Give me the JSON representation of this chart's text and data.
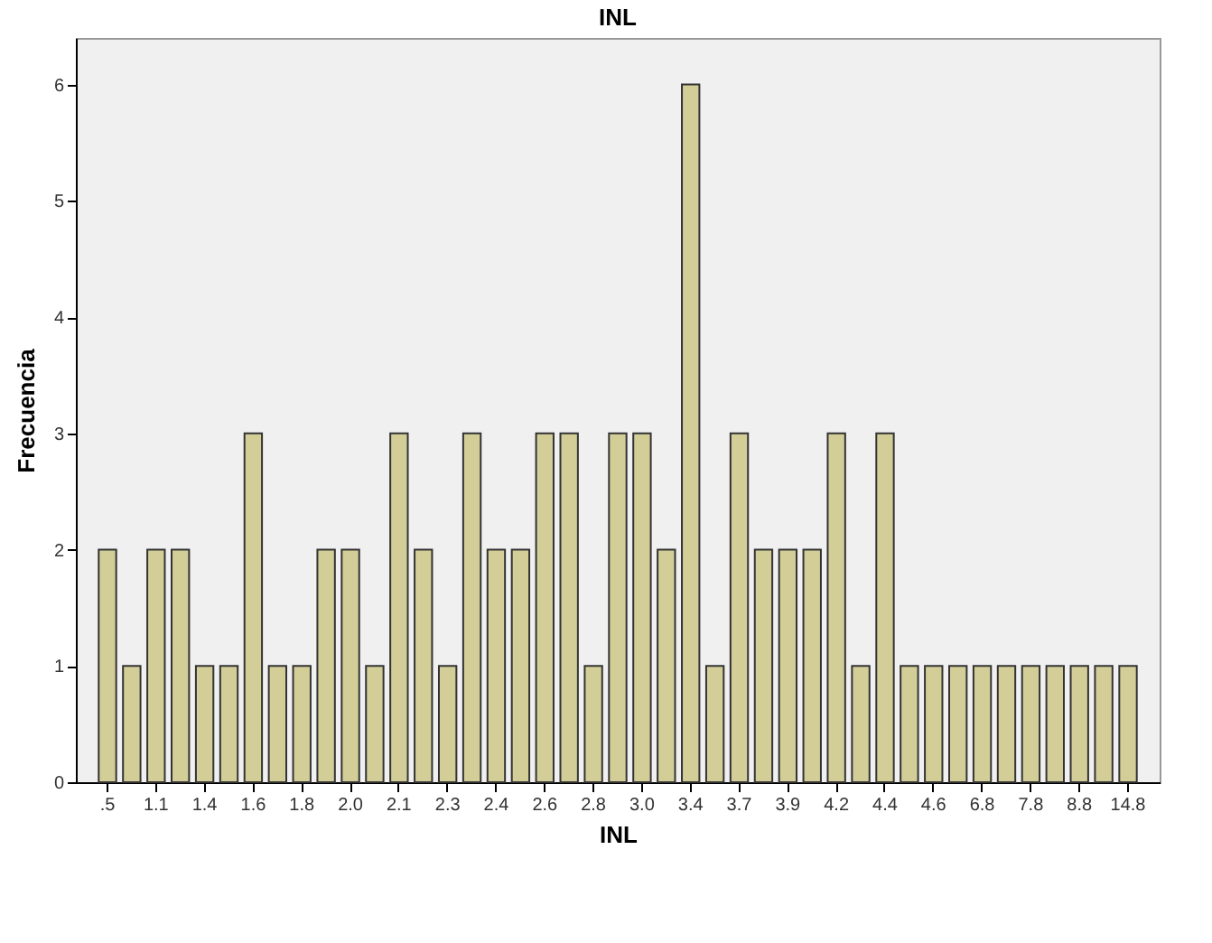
{
  "chart_data": {
    "type": "bar",
    "title": "INL",
    "xlabel": "INL",
    "ylabel": "Frecuencia",
    "categories": [
      ".5",
      null,
      "1.1",
      null,
      "1.4",
      null,
      "1.6",
      null,
      "1.8",
      null,
      "2.0",
      null,
      "2.1",
      null,
      "2.3",
      null,
      "2.4",
      null,
      "2.6",
      null,
      "2.8",
      null,
      "3.0",
      null,
      "3.4",
      null,
      "3.7",
      null,
      "3.9",
      null,
      "4.2",
      null,
      "4.4",
      null,
      "4.6",
      null,
      "6.8",
      null,
      "7.8",
      null,
      "8.8",
      null,
      "14.8"
    ],
    "values": [
      2,
      1,
      2,
      2,
      1,
      1,
      3,
      1,
      1,
      2,
      2,
      1,
      3,
      2,
      1,
      3,
      2,
      2,
      3,
      3,
      1,
      3,
      3,
      2,
      6,
      1,
      3,
      2,
      2,
      2,
      3,
      1,
      3,
      1,
      1,
      1,
      1,
      1,
      1,
      1,
      1,
      1,
      1
    ],
    "color": "#d3ce98",
    "ylim": [
      0,
      6.4
    ],
    "yticks": [
      0,
      1,
      2,
      3,
      4,
      5,
      6
    ],
    "grid": false
  }
}
